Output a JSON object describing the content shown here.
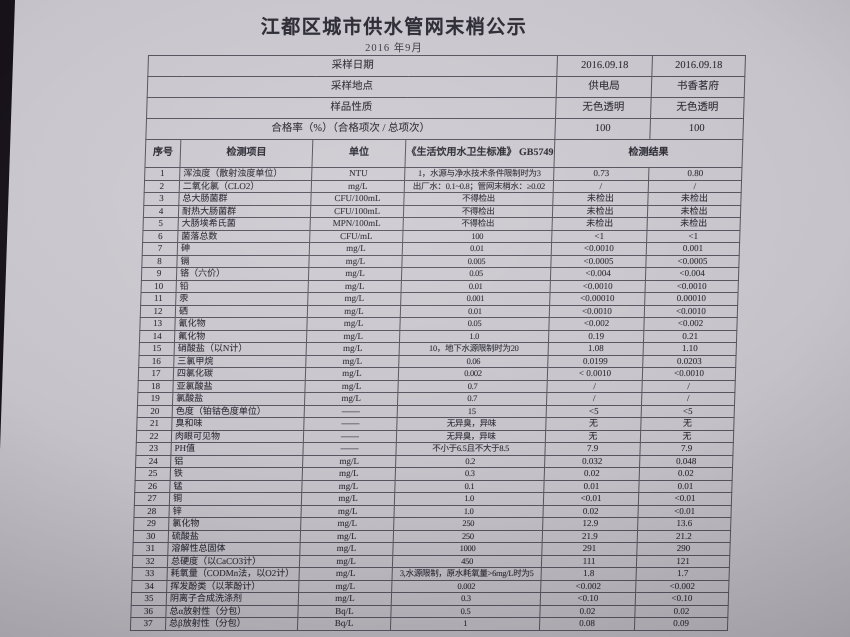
{
  "title": "江都区城市供水管网末梢公示",
  "subtitle": "2016 年9月",
  "info_rows": [
    {
      "label": "采样日期",
      "v1": "2016.09.18",
      "v2": "2016.09.18"
    },
    {
      "label": "采样地点",
      "v1": "供电局",
      "v2": "书香茗府"
    },
    {
      "label": "样品性质",
      "v1": "无色透明",
      "v2": "无色透明"
    },
    {
      "label": "合格率（%）（合格项次 / 总项次）",
      "v1": "100",
      "v2": "100"
    }
  ],
  "columns": [
    "序号",
    "检测项目",
    "单位",
    "《生活饮用水卫生标准》 GB5749",
    "检测结果"
  ],
  "rows": [
    [
      "1",
      "浑浊度（散射浊度单位）",
      "NTU",
      "1，水源与净水技术条件限制时为3",
      "0.73",
      "0.80"
    ],
    [
      "2",
      "二氧化氯（CLO2）",
      "mg/L",
      "出厂水：0.1~0.8；管网末梢水：≥0.02",
      "/",
      "/"
    ],
    [
      "3",
      "总大肠菌群",
      "CFU/100mL",
      "不得检出",
      "未检出",
      "未检出"
    ],
    [
      "4",
      "耐热大肠菌群",
      "CFU/100mL",
      "不得检出",
      "未检出",
      "未检出"
    ],
    [
      "5",
      "大肠埃希氏菌",
      "MPN/100mL",
      "不得检出",
      "未检出",
      "未检出"
    ],
    [
      "6",
      "菌落总数",
      "CFU/mL",
      "100",
      "<1",
      "<1"
    ],
    [
      "7",
      "砷",
      "mg/L",
      "0.01",
      "<0.0010",
      "0.001"
    ],
    [
      "8",
      "镉",
      "mg/L",
      "0.005",
      "<0.0005",
      "<0.0005"
    ],
    [
      "9",
      "铬（六价）",
      "mg/L",
      "0.05",
      "<0.004",
      "<0.004"
    ],
    [
      "10",
      "铅",
      "mg/L",
      "0.01",
      "<0.0010",
      "<0.0010"
    ],
    [
      "11",
      "汞",
      "mg/L",
      "0.001",
      "<0.00010",
      "0.00010"
    ],
    [
      "12",
      "硒",
      "mg/L",
      "0.01",
      "<0.0010",
      "<0.0010"
    ],
    [
      "13",
      "氰化物",
      "mg/L",
      "0.05",
      "<0.002",
      "<0.002"
    ],
    [
      "14",
      "氟化物",
      "mg/L",
      "1.0",
      "0.19",
      "0.21"
    ],
    [
      "15",
      "硝酸盐（以N计）",
      "mg/L",
      "10，地下水源限制时为20",
      "1.08",
      "1.10"
    ],
    [
      "16",
      "三氯甲烷",
      "mg/L",
      "0.06",
      "0.0199",
      "0.0203"
    ],
    [
      "17",
      "四氯化碳",
      "mg/L",
      "0.002",
      "< 0.0010",
      "<0.0010"
    ],
    [
      "18",
      "亚氯酸盐",
      "mg/L",
      "0.7",
      "/",
      "/"
    ],
    [
      "19",
      "氯酸盐",
      "mg/L",
      "0.7",
      "/",
      "/"
    ],
    [
      "20",
      "色度（铂钴色度单位）",
      "——",
      "15",
      "<5",
      "<5"
    ],
    [
      "21",
      "臭和味",
      "——",
      "无异臭，异味",
      "无",
      "无"
    ],
    [
      "22",
      "肉眼可见物",
      "——",
      "无异臭，异味",
      "无",
      "无"
    ],
    [
      "23",
      "PH值",
      "——",
      "不小于6.5且不大于8.5",
      "7.9",
      "7.9"
    ],
    [
      "24",
      "铝",
      "mg/L",
      "0.2",
      "0.032",
      "0.048"
    ],
    [
      "25",
      "铁",
      "mg/L",
      "0.3",
      "0.02",
      "0.02"
    ],
    [
      "26",
      "锰",
      "mg/L",
      "0.1",
      "0.01",
      "0.01"
    ],
    [
      "27",
      "铜",
      "mg/L",
      "1.0",
      "<0.01",
      "<0.01"
    ],
    [
      "28",
      "锌",
      "mg/L",
      "1.0",
      "0.02",
      "<0.01"
    ],
    [
      "29",
      "氯化物",
      "mg/L",
      "250",
      "12.9",
      "13.6"
    ],
    [
      "30",
      "硫酸盐",
      "mg/L",
      "250",
      "21.9",
      "21.2"
    ],
    [
      "31",
      "溶解性总固体",
      "mg/L",
      "1000",
      "291",
      "290"
    ],
    [
      "32",
      "总硬度（以CaCO3计）",
      "mg/L",
      "450",
      "111",
      "121"
    ],
    [
      "33",
      "耗氧量（CODMn法，以O2计）",
      "mg/L",
      "3,水源限制，原水耗氧量>6mg/L时为5",
      "1.8",
      "1.7"
    ],
    [
      "34",
      "挥发酚类（以苯酚计）",
      "mg/L",
      "0.002",
      "<0.002",
      "<0.002"
    ],
    [
      "35",
      "阴离子合成洗涤剂",
      "mg/L",
      "0.3",
      "<0.10",
      "<0.10"
    ],
    [
      "36",
      "总α放射性（分包）",
      "Bq/L",
      "0.5",
      "0.02",
      "0.02"
    ],
    [
      "37",
      "总β放射性（分包）",
      "Bq/L",
      "1",
      "0.08",
      "0.09"
    ]
  ]
}
